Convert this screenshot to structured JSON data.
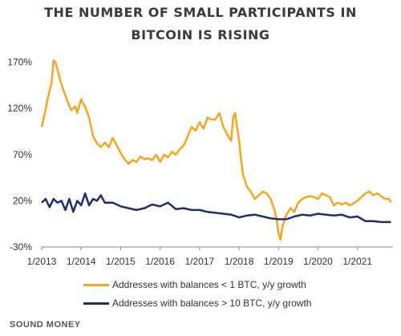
{
  "title_line1": "THE NUMBER OF SMALL PARTICIPANTS IN",
  "title_line2": "BITCOIN IS RISING",
  "footer": "SOUND MONEY",
  "chart_data": {
    "type": "line",
    "title": "THE NUMBER OF SMALL PARTICIPANTS IN BITCOIN IS RISING",
    "xlabel": "",
    "ylabel": "",
    "xlim": [
      2013.0,
      2021.9
    ],
    "ylim": [
      -30,
      180
    ],
    "x_ticks": [
      2013,
      2014,
      2015,
      2016,
      2017,
      2018,
      2019,
      2020,
      2021
    ],
    "x_tick_labels": [
      "1/2013",
      "1/2014",
      "1/2015",
      "1/2016",
      "1/2017",
      "1/2018",
      "1/2019",
      "1/2020",
      "1/2021"
    ],
    "y_ticks": [
      -30,
      20,
      70,
      120,
      170
    ],
    "y_tick_labels": [
      "-30%",
      "20%",
      "70%",
      "120%",
      "170%"
    ],
    "grid": false,
    "legend_position": "bottom",
    "series": [
      {
        "name": "Addresses with balances < 1 BTC, y/y growth",
        "color": "#f5a623",
        "x": [
          2013.0,
          2013.08,
          2013.15,
          2013.25,
          2013.3,
          2013.35,
          2013.4,
          2013.47,
          2013.55,
          2013.65,
          2013.75,
          2013.85,
          2013.9,
          2014.0,
          2014.05,
          2014.1,
          2014.2,
          2014.3,
          2014.4,
          2014.5,
          2014.6,
          2014.7,
          2014.8,
          2014.9,
          2015.0,
          2015.1,
          2015.2,
          2015.3,
          2015.4,
          2015.5,
          2015.6,
          2015.7,
          2015.8,
          2015.9,
          2016.0,
          2016.1,
          2016.2,
          2016.3,
          2016.4,
          2016.5,
          2016.6,
          2016.7,
          2016.8,
          2016.9,
          2017.0,
          2017.1,
          2017.2,
          2017.3,
          2017.4,
          2017.5,
          2017.6,
          2017.7,
          2017.75,
          2017.8,
          2017.85,
          2017.9,
          2017.95,
          2018.0,
          2018.05,
          2018.1,
          2018.2,
          2018.3,
          2018.4,
          2018.5,
          2018.6,
          2018.7,
          2018.8,
          2018.9,
          2018.95,
          2019.0,
          2019.05,
          2019.1,
          2019.2,
          2019.3,
          2019.4,
          2019.5,
          2019.6,
          2019.7,
          2019.8,
          2019.9,
          2020.0,
          2020.1,
          2020.2,
          2020.3,
          2020.4,
          2020.5,
          2020.6,
          2020.7,
          2020.8,
          2020.9,
          2021.0,
          2021.1,
          2021.2,
          2021.3,
          2021.4,
          2021.5,
          2021.6,
          2021.7,
          2021.8,
          2021.85
        ],
        "y": [
          100,
          115,
          130,
          148,
          172,
          170,
          162,
          150,
          140,
          128,
          118,
          122,
          115,
          130,
          125,
          122,
          110,
          90,
          82,
          78,
          83,
          78,
          88,
          80,
          72,
          65,
          60,
          64,
          62,
          68,
          65,
          66,
          64,
          70,
          62,
          70,
          67,
          73,
          70,
          76,
          80,
          90,
          100,
          96,
          105,
          98,
          110,
          108,
          108,
          115,
          100,
          92,
          88,
          85,
          110,
          115,
          100,
          85,
          65,
          48,
          35,
          30,
          22,
          26,
          30,
          28,
          22,
          10,
          0,
          -15,
          -22,
          -8,
          5,
          12,
          8,
          18,
          22,
          24,
          25,
          24,
          22,
          28,
          26,
          24,
          15,
          18,
          16,
          18,
          15,
          17,
          20,
          24,
          28,
          30,
          26,
          28,
          25,
          22,
          22,
          18
        ]
      },
      {
        "name": "Addresses with balances > 10 BTC, y/y growth",
        "color": "#1f2f66",
        "x": [
          2013.0,
          2013.1,
          2013.2,
          2013.3,
          2013.4,
          2013.5,
          2013.6,
          2013.7,
          2013.8,
          2013.9,
          2014.0,
          2014.1,
          2014.2,
          2014.3,
          2014.4,
          2014.5,
          2014.6,
          2014.8,
          2015.0,
          2015.2,
          2015.4,
          2015.6,
          2015.8,
          2016.0,
          2016.2,
          2016.4,
          2016.6,
          2016.8,
          2017.0,
          2017.2,
          2017.4,
          2017.6,
          2017.8,
          2018.0,
          2018.2,
          2018.4,
          2018.6,
          2018.8,
          2019.0,
          2019.2,
          2019.4,
          2019.6,
          2019.8,
          2020.0,
          2020.2,
          2020.4,
          2020.6,
          2020.8,
          2021.0,
          2021.2,
          2021.4,
          2021.6,
          2021.85
        ],
        "y": [
          18,
          22,
          13,
          22,
          18,
          20,
          10,
          22,
          8,
          20,
          15,
          28,
          15,
          22,
          20,
          26,
          18,
          18,
          14,
          12,
          10,
          12,
          16,
          14,
          18,
          11,
          12,
          10,
          10,
          8,
          7,
          6,
          5,
          2,
          4,
          5,
          3,
          1,
          0,
          0,
          3,
          5,
          4,
          6,
          5,
          4,
          5,
          2,
          3,
          -2,
          -2,
          -3,
          -3
        ]
      }
    ]
  }
}
